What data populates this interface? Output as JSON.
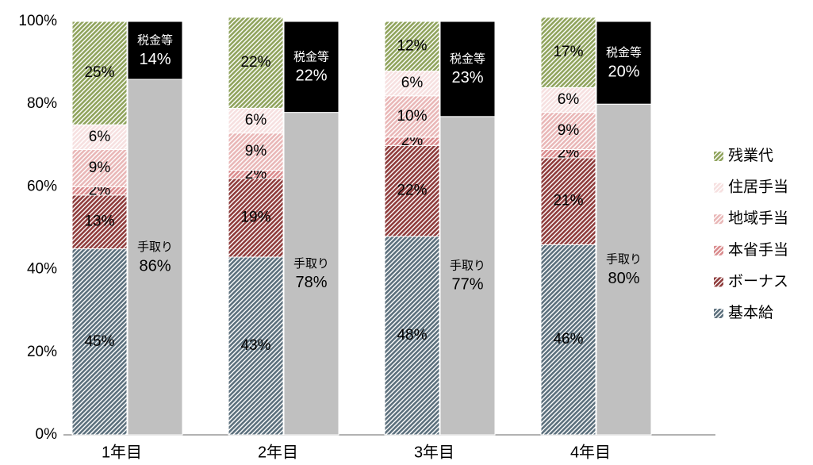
{
  "chart_data": {
    "type": "bar",
    "categories": [
      "1年目",
      "2年目",
      "3年目",
      "4年目"
    ],
    "series": [
      {
        "name": "基本給",
        "color": "#5b6f7c",
        "values": [
          45,
          43,
          48,
          46
        ],
        "value_labels": [
          "45%",
          "43%",
          "48%",
          "46%"
        ]
      },
      {
        "name": "ボーナス",
        "color": "#8e3b3b",
        "values": [
          13,
          19,
          22,
          21
        ],
        "value_labels": [
          "13%",
          "19%",
          "22%",
          "21%"
        ]
      },
      {
        "name": "本省手当",
        "color": "#d98a8c",
        "values": [
          2,
          2,
          2,
          2
        ],
        "value_labels": [
          "2%",
          "2%",
          "2%",
          "2%"
        ]
      },
      {
        "name": "地域手当",
        "color": "#e9b7b7",
        "values": [
          9,
          9,
          10,
          9
        ],
        "value_labels": [
          "9%",
          "9%",
          "10%",
          "9%"
        ]
      },
      {
        "name": "住居手当",
        "color": "#f6e0e0",
        "values": [
          6,
          6,
          6,
          6
        ],
        "value_labels": [
          "6%",
          "6%",
          "6%",
          "6%"
        ]
      },
      {
        "name": "残業代",
        "color": "#8fa35c",
        "values": [
          25,
          22,
          12,
          17
        ],
        "value_labels": [
          "25%",
          "22%",
          "12%",
          "17%"
        ]
      }
    ],
    "comparison_series": [
      {
        "name": "手取り",
        "color": "#c0c0c0",
        "values": [
          86,
          78,
          77,
          80
        ],
        "value_labels": [
          "86%",
          "78%",
          "77%",
          "80%"
        ]
      },
      {
        "name": "税金等",
        "color": "#000000",
        "values": [
          14,
          22,
          23,
          20
        ],
        "value_labels": [
          "14%",
          "22%",
          "23%",
          "20%"
        ]
      }
    ],
    "ylim": [
      0,
      100
    ],
    "yticks": [
      {
        "value": 0,
        "label": "0%"
      },
      {
        "value": 20,
        "label": "20%"
      },
      {
        "value": 40,
        "label": "40%"
      },
      {
        "value": 60,
        "label": "60%"
      },
      {
        "value": 80,
        "label": "80%"
      },
      {
        "value": 100,
        "label": "100%"
      }
    ],
    "grid": false,
    "legend": "right"
  }
}
